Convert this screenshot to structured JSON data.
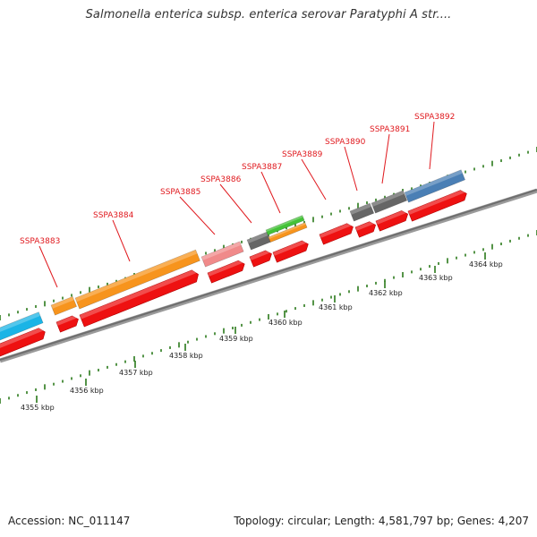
{
  "title": "Salmonella enterica subsp. enterica serovar Paratyphi A str....",
  "footer": {
    "accession": "Accession: NC_011147",
    "summary": "Topology: circular; Length: 4,581,797 bp; Genes: 4,207"
  },
  "colors": {
    "gene_label": "#e0191e",
    "cds": "#ee1111",
    "tick": "#2a7a1a",
    "backbone": "#888888"
  },
  "kbp_ticks": [
    {
      "label": "4355 kbp",
      "pos": 4355
    },
    {
      "label": "4356 kbp",
      "pos": 4356
    },
    {
      "label": "4357 kbp",
      "pos": 4357
    },
    {
      "label": "4358 kbp",
      "pos": 4358
    },
    {
      "label": "4359 kbp",
      "pos": 4359
    },
    {
      "label": "4360 kbp",
      "pos": 4360
    },
    {
      "label": "4361 kbp",
      "pos": 4361
    },
    {
      "label": "4362 kbp",
      "pos": 4362
    },
    {
      "label": "4363 kbp",
      "pos": 4363
    },
    {
      "label": "4364 kbp",
      "pos": 4364
    }
  ],
  "genes": [
    {
      "name": "SSPA3883",
      "color": "#f7941d"
    },
    {
      "name": "SSPA3884",
      "color": "#f7941d"
    },
    {
      "name": "SSPA3885",
      "color": "#f08a8a"
    },
    {
      "name": "SSPA3886",
      "color": "#666666"
    },
    {
      "name": "SSPA3887",
      "color": "#44c238"
    },
    {
      "name": "SSPA3889",
      "color": "#666666"
    },
    {
      "name": "SSPA3890",
      "color": "#666666"
    },
    {
      "name": "SSPA3891",
      "color": "#666666"
    },
    {
      "name": "SSPA3892",
      "color": "#4a7fb5"
    }
  ]
}
